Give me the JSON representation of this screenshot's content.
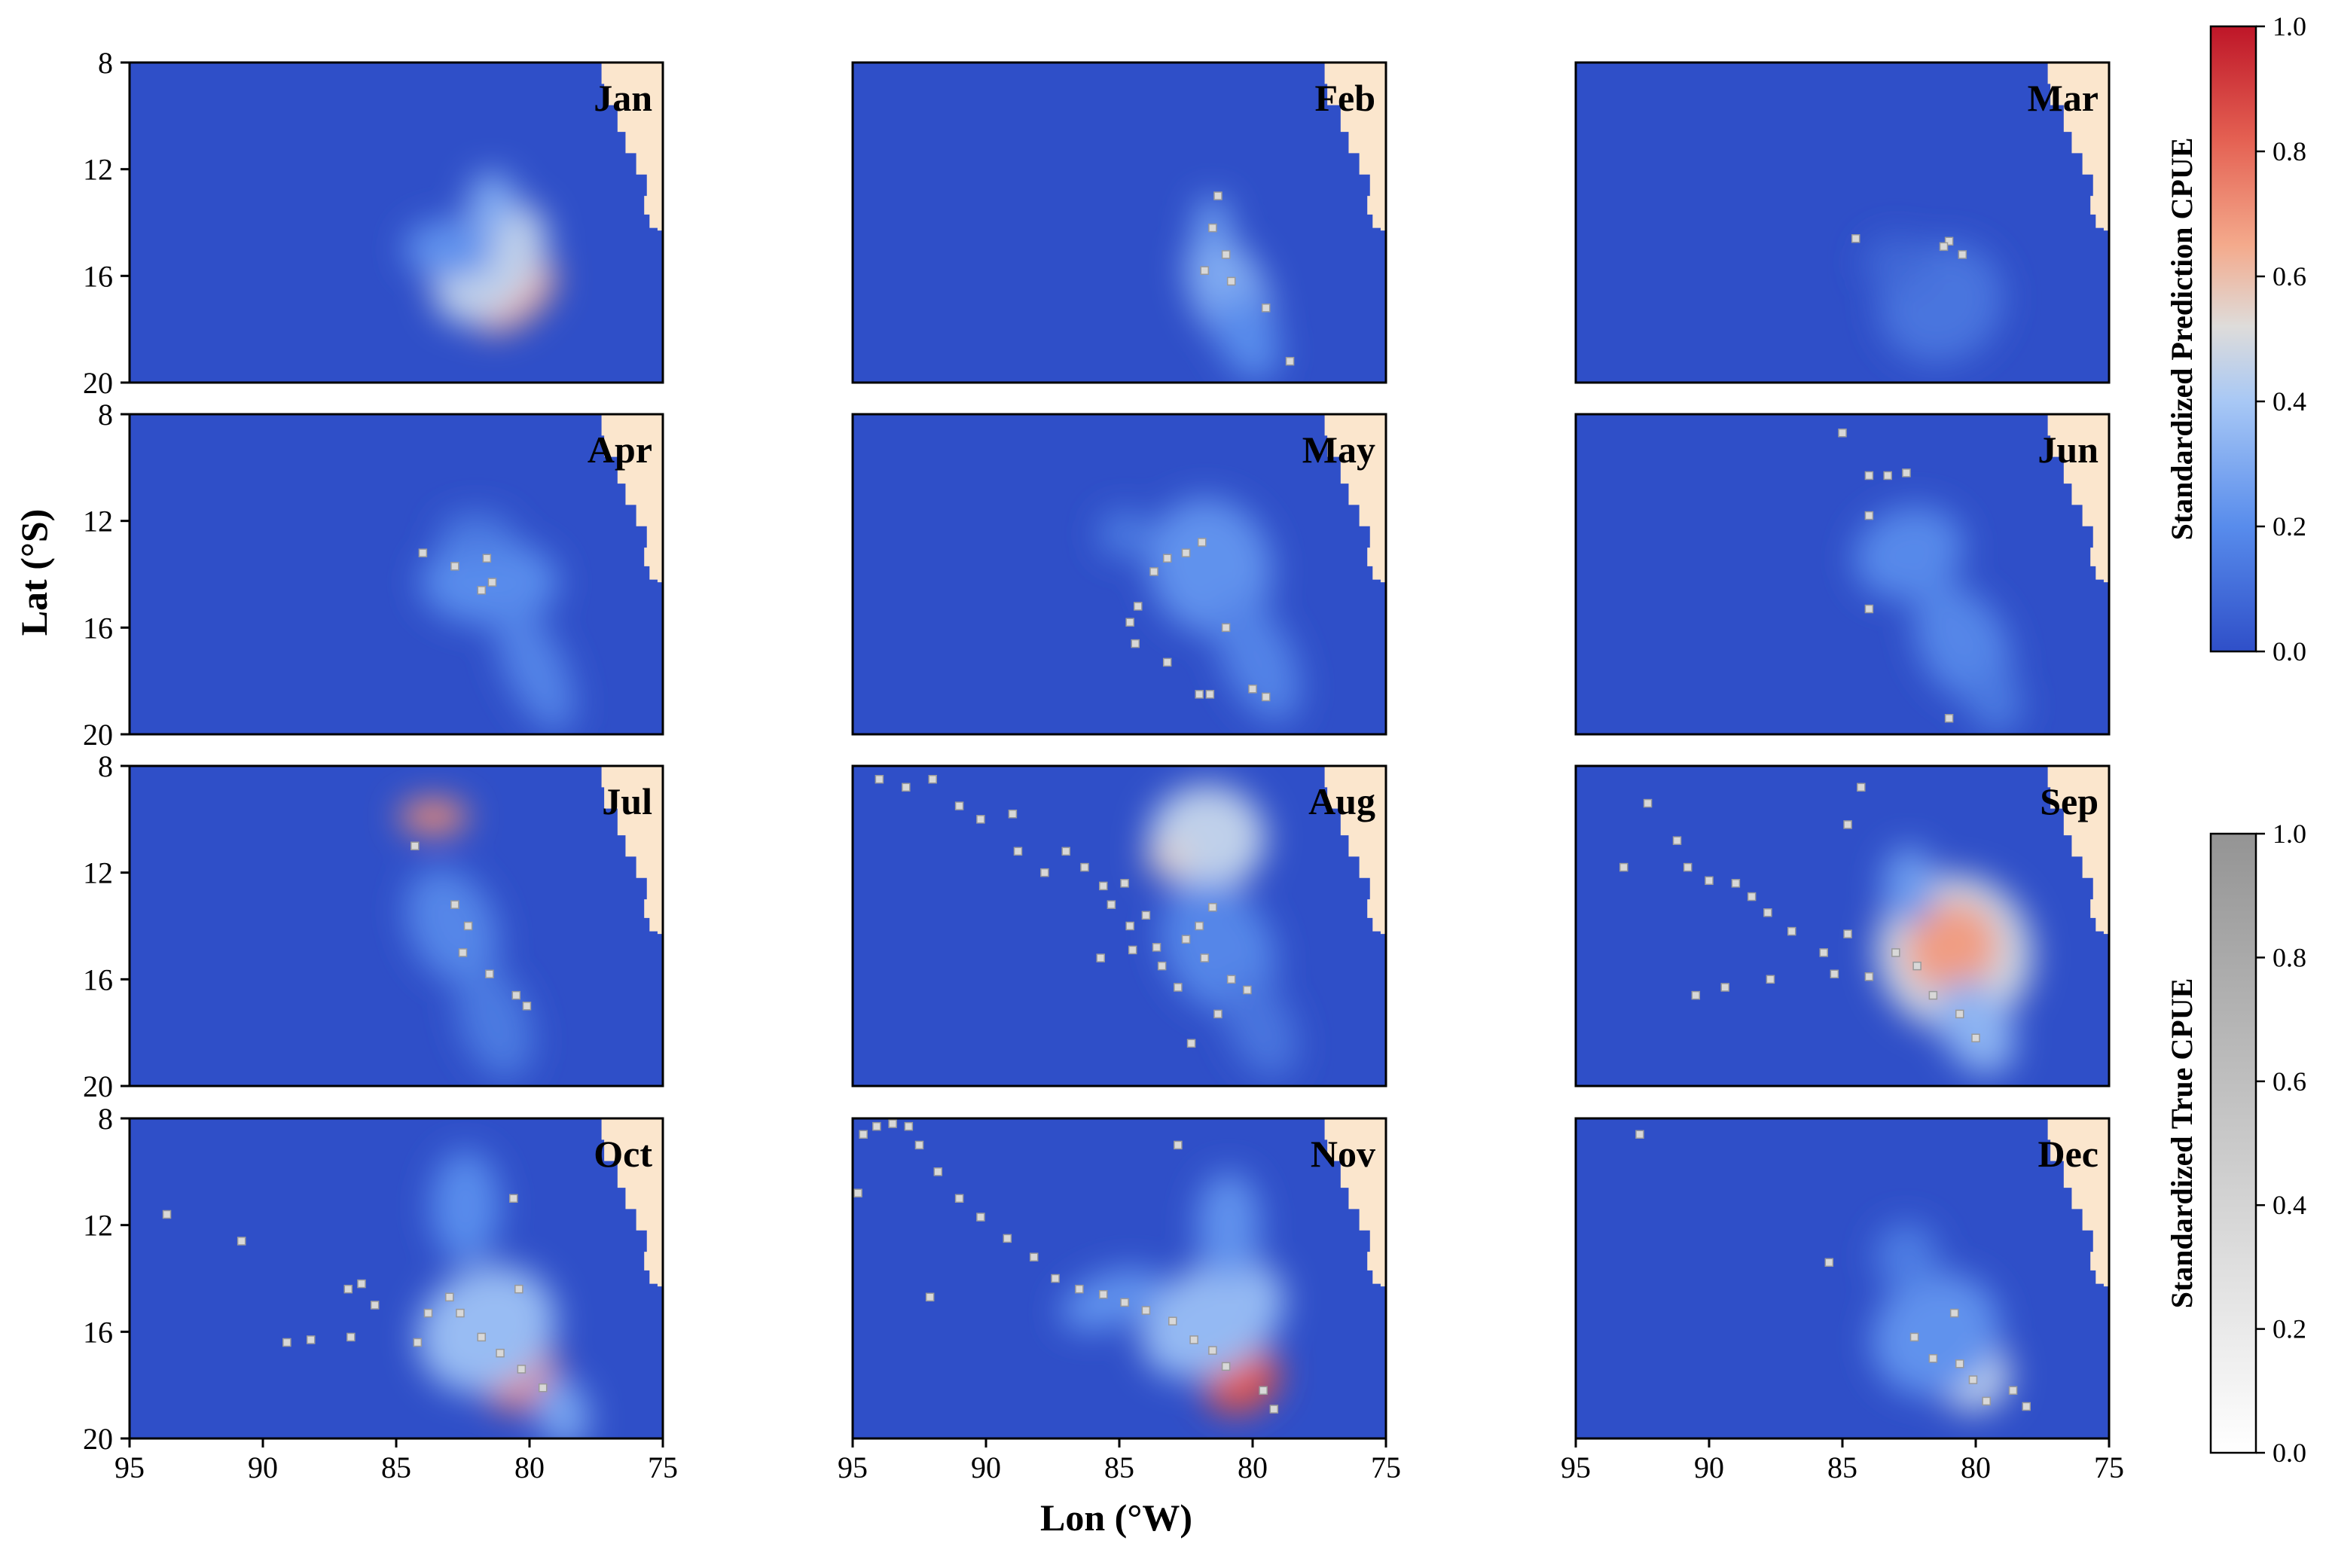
{
  "chart_data": {
    "type": "heatmap",
    "description_layout": "small-multiples 4x3",
    "xlabel": "Lon (°W)",
    "ylabel": "Lat (°S)",
    "x_ticks": [
      95,
      90,
      85,
      80,
      75
    ],
    "y_ticks": [
      8,
      12,
      16,
      20
    ],
    "xlim": [
      95,
      75
    ],
    "ylim": [
      20,
      8
    ],
    "colorbars": [
      {
        "label": "Standardized Prediction CPUE",
        "ticks": [
          "0.0",
          "0.2",
          "0.4",
          "0.6",
          "0.8",
          "1.0"
        ],
        "colors": [
          "#3050c8",
          "#8bb0f5",
          "#dcdcdc",
          "#f4a080",
          "#c01828"
        ]
      },
      {
        "label": "Standardized True CPUE",
        "ticks": [
          "0.0",
          "0.2",
          "0.4",
          "0.6",
          "0.8",
          "1.0"
        ],
        "colors": [
          "#ffffff",
          "#9a9a9a"
        ]
      }
    ],
    "colors": {
      "ocean": "#2f4fc8",
      "land": "#fbe6cd",
      "frame": "#000000"
    },
    "coast_outline": [
      [
        77.3,
        8
      ],
      [
        77.2,
        8.8
      ],
      [
        76.7,
        9.6
      ],
      [
        76.4,
        10.6
      ],
      [
        76,
        11.4
      ],
      [
        75.6,
        12.2
      ],
      [
        75.7,
        13
      ],
      [
        75.5,
        13.7
      ],
      [
        75.2,
        14.2
      ],
      [
        75,
        14.3
      ]
    ],
    "months": [
      {
        "name": "Jan",
        "blobs": [
          [
            80.5,
            16.8,
            1.8,
            0.9,
            0.65,
            -40
          ],
          [
            81.5,
            15.5,
            2.6,
            1.8,
            0.45,
            -50
          ],
          [
            83,
            15,
            1.7,
            1.1,
            0.22,
            0
          ],
          [
            81.4,
            13.2,
            0.9,
            1.1,
            0.3,
            0
          ]
        ],
        "points": []
      },
      {
        "name": "Feb",
        "blobs": [
          [
            80.9,
            16.6,
            1.4,
            2.4,
            0.3,
            -25
          ],
          [
            80.2,
            18.3,
            1.1,
            1.7,
            0.2,
            -25
          ],
          [
            81.5,
            14,
            0.7,
            1,
            0.25,
            0
          ]
        ],
        "points": [
          [
            81.3,
            13
          ],
          [
            81.5,
            14.2
          ],
          [
            81,
            15.2
          ],
          [
            81.8,
            15.8
          ],
          [
            80.8,
            16.2
          ],
          [
            79.5,
            17.2
          ],
          [
            78.6,
            19.2
          ]
        ]
      },
      {
        "name": "Mar",
        "blobs": [
          [
            81.3,
            17,
            2.4,
            2.2,
            0.12,
            -35
          ],
          [
            83,
            15.5,
            1.2,
            1,
            0.08,
            0
          ]
        ],
        "points": [
          [
            84.5,
            14.6
          ],
          [
            81,
            14.7
          ],
          [
            81.2,
            14.9
          ],
          [
            80.5,
            15.2
          ]
        ]
      },
      {
        "name": "Apr",
        "blobs": [
          [
            81.5,
            14.3,
            2.6,
            1.6,
            0.2,
            0
          ],
          [
            79.8,
            17.5,
            1.1,
            2.6,
            0.17,
            -25
          ],
          [
            82,
            12.5,
            1.4,
            0.8,
            0.14,
            0
          ]
        ],
        "points": [
          [
            84,
            13.2
          ],
          [
            82.8,
            13.7
          ],
          [
            81.6,
            13.4
          ],
          [
            81.4,
            14.3
          ],
          [
            81.8,
            14.6
          ]
        ]
      },
      {
        "name": "May",
        "blobs": [
          [
            81.6,
            13.7,
            2.3,
            2.6,
            0.22,
            -20
          ],
          [
            79.8,
            17.2,
            1.3,
            2.5,
            0.17,
            -25
          ],
          [
            84.8,
            12.5,
            1,
            0.9,
            0.14,
            0
          ]
        ],
        "points": [
          [
            83.7,
            13.9
          ],
          [
            83.2,
            13.4
          ],
          [
            82.5,
            13.2
          ],
          [
            81.9,
            12.8
          ],
          [
            84.3,
            15.2
          ],
          [
            84.6,
            15.8
          ],
          [
            84.4,
            16.6
          ],
          [
            83.2,
            17.3
          ],
          [
            82,
            18.5
          ],
          [
            81.6,
            18.5
          ],
          [
            80,
            18.3
          ],
          [
            79.5,
            18.6
          ],
          [
            81,
            16
          ]
        ]
      },
      {
        "name": "Jun",
        "blobs": [
          [
            82.5,
            13.2,
            2.1,
            1.7,
            0.19,
            -20
          ],
          [
            80.5,
            16.6,
            1.6,
            2.4,
            0.18,
            -30
          ],
          [
            79.3,
            18.7,
            1,
            1.3,
            0.14,
            -20
          ]
        ],
        "points": [
          [
            85,
            8.7
          ],
          [
            84,
            10.3
          ],
          [
            83.3,
            10.3
          ],
          [
            82.6,
            10.2
          ],
          [
            84,
            11.8
          ],
          [
            84,
            15.3
          ],
          [
            81,
            19.4
          ]
        ]
      },
      {
        "name": "Jul",
        "blobs": [
          [
            83.6,
            9.9,
            1.3,
            0.65,
            0.72,
            0
          ],
          [
            82.9,
            14,
            1.6,
            2.3,
            0.18,
            -25
          ],
          [
            81.3,
            17.6,
            1.3,
            2.2,
            0.14,
            -20
          ]
        ],
        "points": [
          [
            84.3,
            11
          ],
          [
            82.3,
            14
          ],
          [
            82.8,
            13.2
          ],
          [
            82.5,
            15
          ],
          [
            81.5,
            15.8
          ],
          [
            80.5,
            16.6
          ],
          [
            80.1,
            17
          ]
        ]
      },
      {
        "name": "Aug",
        "blobs": [
          [
            81.3,
            10.5,
            1.3,
            1.4,
            0.92,
            0
          ],
          [
            81.7,
            10.7,
            2.2,
            2,
            0.45,
            0
          ],
          [
            83.2,
            11.5,
            0.8,
            0.6,
            0.55,
            0
          ],
          [
            81.3,
            14.8,
            2,
            2.6,
            0.18,
            -30
          ],
          [
            79.7,
            17.8,
            1.2,
            2,
            0.12,
            -25
          ]
        ],
        "points": [
          [
            94,
            8.5
          ],
          [
            93,
            8.8
          ],
          [
            92,
            8.5
          ],
          [
            91,
            9.5
          ],
          [
            90.2,
            10
          ],
          [
            89,
            9.8
          ],
          [
            88.8,
            11.2
          ],
          [
            87.8,
            12
          ],
          [
            87,
            11.2
          ],
          [
            86.3,
            11.8
          ],
          [
            85.6,
            12.5
          ],
          [
            85.3,
            13.2
          ],
          [
            84.6,
            14
          ],
          [
            84,
            13.6
          ],
          [
            83.6,
            14.8
          ],
          [
            84.8,
            12.4
          ],
          [
            82.5,
            14.5
          ],
          [
            81.8,
            15.2
          ],
          [
            81.5,
            13.3
          ],
          [
            82.8,
            16.3
          ],
          [
            80.8,
            16
          ],
          [
            80.2,
            16.4
          ],
          [
            81.3,
            17.3
          ],
          [
            82.3,
            18.4
          ],
          [
            84.5,
            14.9
          ],
          [
            85.7,
            15.2
          ],
          [
            83.4,
            15.5
          ],
          [
            82,
            14
          ]
        ]
      },
      {
        "name": "Sep",
        "blobs": [
          [
            80.8,
            15,
            2.9,
            3,
            0.48,
            -40
          ],
          [
            80.9,
            14.8,
            1.8,
            1.7,
            0.68,
            -40
          ],
          [
            82.5,
            12.5,
            1,
            1.5,
            0.25,
            0
          ],
          [
            80,
            17.8,
            1.3,
            1.9,
            0.33,
            -30
          ]
        ],
        "points": [
          [
            93.2,
            11.8
          ],
          [
            92.3,
            9.4
          ],
          [
            91.2,
            10.8
          ],
          [
            90.8,
            11.8
          ],
          [
            90,
            12.3
          ],
          [
            89,
            12.4
          ],
          [
            88.4,
            12.9
          ],
          [
            87.8,
            13.5
          ],
          [
            86.9,
            14.2
          ],
          [
            85.7,
            15
          ],
          [
            84.8,
            14.3
          ],
          [
            84,
            15.9
          ],
          [
            83,
            15
          ],
          [
            82.2,
            15.5
          ],
          [
            81.6,
            16.6
          ],
          [
            80.6,
            17.3
          ],
          [
            80,
            18.2
          ],
          [
            89.4,
            16.3
          ],
          [
            90.5,
            16.6
          ],
          [
            87.7,
            16
          ],
          [
            85.3,
            15.8
          ],
          [
            84.8,
            10.2
          ],
          [
            84.3,
            8.8
          ]
        ]
      },
      {
        "name": "Oct",
        "blobs": [
          [
            80.4,
            17.6,
            1.5,
            1.3,
            0.75,
            -30
          ],
          [
            81.6,
            15.9,
            2.7,
            2.3,
            0.36,
            -30
          ],
          [
            82.4,
            11.3,
            1.3,
            2.1,
            0.2,
            0
          ],
          [
            78.8,
            19,
            1,
            1.4,
            0.28,
            -20
          ]
        ],
        "points": [
          [
            93.6,
            11.6
          ],
          [
            90.8,
            12.6
          ],
          [
            86.8,
            14.4
          ],
          [
            86.3,
            14.2
          ],
          [
            85.8,
            15
          ],
          [
            84.2,
            16.4
          ],
          [
            83.8,
            15.3
          ],
          [
            83,
            14.7
          ],
          [
            82.6,
            15.3
          ],
          [
            81.8,
            16.2
          ],
          [
            81.1,
            16.8
          ],
          [
            80.3,
            17.4
          ],
          [
            79.5,
            18.1
          ],
          [
            80.4,
            14.4
          ],
          [
            80.6,
            11
          ],
          [
            89.1,
            16.4
          ],
          [
            88.2,
            16.3
          ],
          [
            86.7,
            16.2
          ]
        ]
      },
      {
        "name": "Nov",
        "blobs": [
          [
            80.4,
            17.8,
            1.5,
            1.2,
            0.85,
            -30
          ],
          [
            81.5,
            15.5,
            2.9,
            2,
            0.35,
            -30
          ],
          [
            80.9,
            12,
            1.2,
            2,
            0.22,
            0
          ],
          [
            85.3,
            14.8,
            2,
            1,
            0.22,
            -20
          ]
        ],
        "points": [
          [
            94.6,
            8.6
          ],
          [
            94.1,
            8.3
          ],
          [
            93.5,
            8.2
          ],
          [
            92.9,
            8.3
          ],
          [
            92.5,
            9
          ],
          [
            91.8,
            10
          ],
          [
            91,
            11
          ],
          [
            90.2,
            11.7
          ],
          [
            89.2,
            12.5
          ],
          [
            88.2,
            13.2
          ],
          [
            87.4,
            14
          ],
          [
            86.5,
            14.4
          ],
          [
            85.6,
            14.6
          ],
          [
            84.8,
            14.9
          ],
          [
            84,
            15.2
          ],
          [
            83,
            15.6
          ],
          [
            82.2,
            16.3
          ],
          [
            81.5,
            16.7
          ],
          [
            81,
            17.3
          ],
          [
            79.6,
            18.2
          ],
          [
            79.2,
            18.9
          ],
          [
            92.1,
            14.7
          ],
          [
            94.8,
            10.8
          ],
          [
            82.8,
            9
          ]
        ]
      },
      {
        "name": "Dec",
        "blobs": [
          [
            80.1,
            17.6,
            1.4,
            1.4,
            0.45,
            -20
          ],
          [
            81.5,
            16.1,
            2.5,
            2.2,
            0.22,
            -35
          ],
          [
            82.6,
            13.2,
            1.2,
            1.3,
            0.15,
            0
          ]
        ],
        "points": [
          [
            92.6,
            8.6
          ],
          [
            85.5,
            13.4
          ],
          [
            82.3,
            16.2
          ],
          [
            81.6,
            17
          ],
          [
            80.6,
            17.2
          ],
          [
            80.1,
            17.8
          ],
          [
            79.6,
            18.6
          ],
          [
            78.6,
            18.2
          ],
          [
            78.1,
            18.8
          ],
          [
            80.8,
            15.3
          ]
        ]
      }
    ]
  }
}
